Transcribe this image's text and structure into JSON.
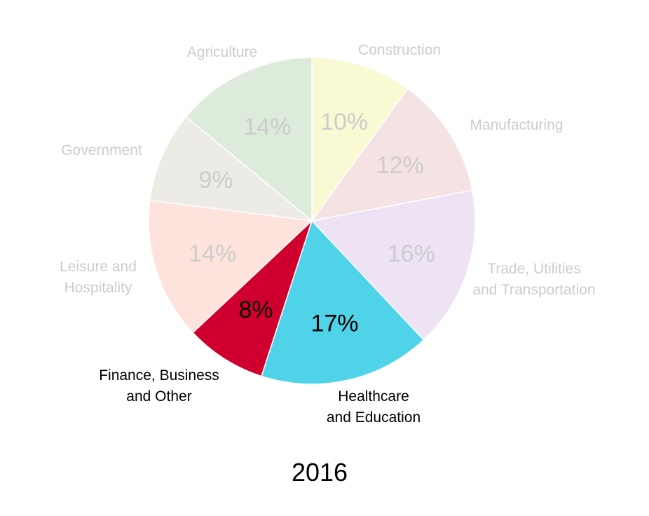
{
  "chart_data": {
    "type": "pie",
    "title": "2016",
    "slices": [
      {
        "label": "Construction",
        "label_lines": [
          "Construction"
        ],
        "value": 10,
        "value_label": "10%",
        "color": "#F9F9D4",
        "highlighted": false
      },
      {
        "label": "Manufacturing",
        "label_lines": [
          "Manufacturing"
        ],
        "value": 12,
        "value_label": "12%",
        "color": "#F5E3E3",
        "highlighted": false
      },
      {
        "label": "Trade, Utilities and Transportation",
        "label_lines": [
          "Trade, Utilities",
          "and Transportation"
        ],
        "value": 16,
        "value_label": "16%",
        "color": "#EEE3F5",
        "highlighted": false
      },
      {
        "label": "Healthcare and Education",
        "label_lines": [
          "Healthcare",
          "and Education"
        ],
        "value": 17,
        "value_label": "17%",
        "color": "#4FD3E8",
        "highlighted": true
      },
      {
        "label": "Finance, Business and Other",
        "label_lines": [
          "Finance, Business",
          "and Other"
        ],
        "value": 8,
        "value_label": "8%",
        "color": "#D0002E",
        "highlighted": true
      },
      {
        "label": "Leisure and Hospitality",
        "label_lines": [
          "Leisure and",
          "Hospitality"
        ],
        "value": 14,
        "value_label": "14%",
        "color": "#FDE3DB",
        "highlighted": false
      },
      {
        "label": "Government",
        "label_lines": [
          "Government"
        ],
        "value": 9,
        "value_label": "9%",
        "color": "#EDEBE6",
        "highlighted": false
      },
      {
        "label": "Agriculture",
        "label_lines": [
          "Agriculture"
        ],
        "value": 14,
        "value_label": "14%",
        "color": "#DCEBDA",
        "highlighted": false
      }
    ],
    "start": "12 o'clock",
    "direction": "clockwise",
    "legend": "none",
    "label_color_muted": "#CCCCCC",
    "label_color_highlight": "#000000"
  }
}
